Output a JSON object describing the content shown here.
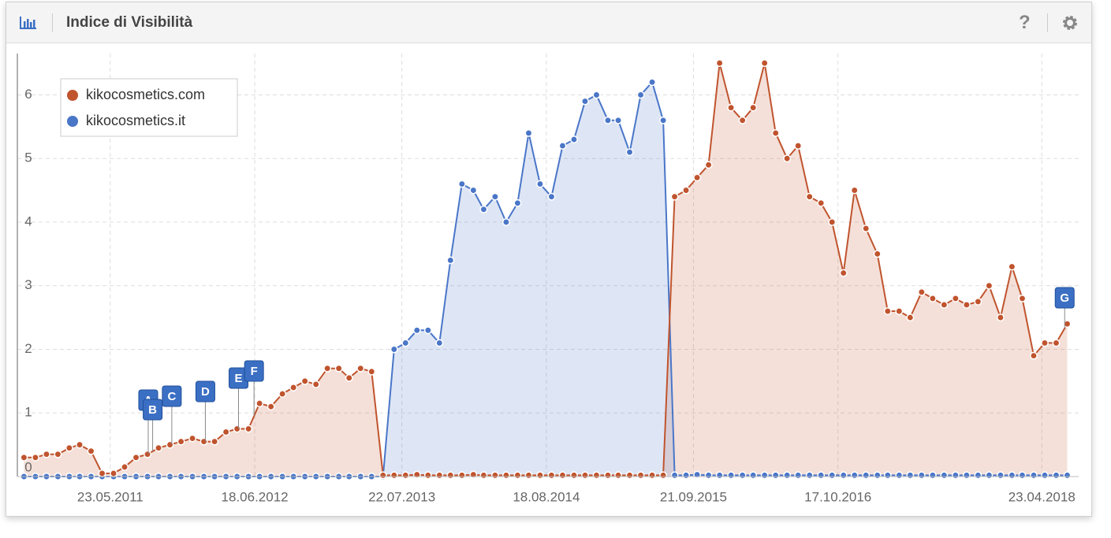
{
  "header": {
    "title": "Indice di Visibilità",
    "help": "?"
  },
  "chart_data": {
    "type": "area",
    "xlim": [
      "13.09.2010",
      "01.08.2018"
    ],
    "xticks": [
      "23.05.2011",
      "18.06.2012",
      "22.07.2013",
      "18.08.2014",
      "21.09.2015",
      "17.10.2016",
      "23.04.2018"
    ],
    "ylim": [
      0,
      6.65
    ],
    "yticks": [
      0,
      1,
      2,
      3,
      4,
      5,
      6
    ],
    "grid": true,
    "legend": "top-left",
    "x": [
      "01.10.2010",
      "01.11.2010",
      "01.12.2010",
      "01.01.2011",
      "01.02.2011",
      "01.03.2011",
      "01.04.2011",
      "01.05.2011",
      "01.06.2011",
      "01.07.2011",
      "01.08.2011",
      "01.09.2011",
      "01.10.2011",
      "01.11.2011",
      "01.12.2011",
      "01.01.2012",
      "01.02.2012",
      "01.03.2012",
      "01.04.2012",
      "01.05.2012",
      "01.06.2012",
      "01.07.2012",
      "01.08.2012",
      "01.09.2012",
      "01.10.2012",
      "01.11.2012",
      "01.12.2012",
      "01.01.2013",
      "01.02.2013",
      "01.03.2013",
      "01.04.2013",
      "01.05.2013",
      "01.06.2013",
      "01.07.2013",
      "01.08.2013",
      "01.09.2013",
      "01.10.2013",
      "01.11.2013",
      "01.12.2013",
      "01.01.2014",
      "01.02.2014",
      "01.03.2014",
      "01.04.2014",
      "01.05.2014",
      "01.06.2014",
      "01.07.2014",
      "01.08.2014",
      "01.09.2014",
      "01.10.2014",
      "01.11.2014",
      "01.12.2014",
      "01.01.2015",
      "01.02.2015",
      "01.03.2015",
      "01.04.2015",
      "01.05.2015",
      "01.06.2015",
      "01.07.2015",
      "01.08.2015",
      "01.09.2015",
      "01.10.2015",
      "01.11.2015",
      "01.12.2015",
      "01.01.2016",
      "01.02.2016",
      "01.03.2016",
      "01.04.2016",
      "01.05.2016",
      "01.06.2016",
      "01.07.2016",
      "01.08.2016",
      "01.09.2016",
      "01.10.2016",
      "01.11.2016",
      "01.12.2016",
      "01.01.2017",
      "01.02.2017",
      "01.03.2017",
      "01.04.2017",
      "01.05.2017",
      "01.06.2017",
      "01.07.2017",
      "01.08.2017",
      "01.09.2017",
      "01.10.2017",
      "01.11.2017",
      "01.12.2017",
      "01.01.2018",
      "01.02.2018",
      "01.03.2018",
      "01.04.2018",
      "01.05.2018",
      "01.06.2018",
      "01.07.2018"
    ],
    "series": [
      {
        "name": "kikocosmetics.com",
        "color": "#c0542e",
        "values": [
          0.3,
          0.3,
          0.35,
          0.35,
          0.45,
          0.5,
          0.4,
          0.05,
          0.05,
          0.15,
          0.3,
          0.35,
          0.45,
          0.5,
          0.55,
          0.6,
          0.55,
          0.55,
          0.7,
          0.75,
          0.75,
          1.15,
          1.1,
          1.3,
          1.4,
          1.5,
          1.45,
          1.7,
          1.7,
          1.55,
          1.7,
          1.65,
          0.02,
          0.02,
          0.02,
          0.03,
          0.02,
          0.02,
          0.02,
          0.02,
          0.03,
          0.02,
          0.02,
          0.02,
          0.02,
          0.02,
          0.02,
          0.02,
          0.02,
          0.02,
          0.02,
          0.02,
          0.02,
          0.02,
          0.02,
          0.02,
          0.02,
          0.02,
          4.4,
          4.5,
          4.7,
          4.9,
          6.5,
          5.8,
          5.6,
          5.8,
          6.5,
          5.4,
          5.0,
          5.2,
          4.4,
          4.3,
          4.0,
          3.2,
          4.5,
          3.9,
          3.5,
          2.6,
          2.6,
          2.5,
          2.9,
          2.8,
          2.7,
          2.8,
          2.7,
          2.75,
          3.0,
          2.5,
          3.3,
          2.8,
          1.9,
          2.1,
          2.1,
          2.4
        ]
      },
      {
        "name": "kikocosmetics.it",
        "color": "#4a76c8",
        "values": [
          0,
          0,
          0,
          0,
          0,
          0,
          0,
          0,
          0,
          0,
          0,
          0,
          0,
          0,
          0,
          0,
          0,
          0,
          0,
          0,
          0,
          0,
          0,
          0,
          0,
          0,
          0,
          0,
          0,
          0,
          0,
          0,
          0,
          2.0,
          2.1,
          2.3,
          2.3,
          2.1,
          3.4,
          4.6,
          4.5,
          4.2,
          4.4,
          4.0,
          4.3,
          5.4,
          4.6,
          4.4,
          5.2,
          5.3,
          5.9,
          6.0,
          5.6,
          5.6,
          5.1,
          6.0,
          6.2,
          5.6,
          0.02,
          0.02,
          0.03,
          0.02,
          0.02,
          0.02,
          0.02,
          0.02,
          0.02,
          0.02,
          0.02,
          0.02,
          0.02,
          0.02,
          0.02,
          0.02,
          0.02,
          0.02,
          0.02,
          0.02,
          0.02,
          0.02,
          0.02,
          0.02,
          0.02,
          0.02,
          0.02,
          0.02,
          0.02,
          0.02,
          0.02,
          0.02,
          0.02,
          0.02,
          0.02,
          0.02
        ]
      }
    ],
    "annotations": [
      {
        "label": "A",
        "x": "03.09.2011"
      },
      {
        "label": "B",
        "x": "15.09.2011"
      },
      {
        "label": "C",
        "x": "06.11.2011"
      },
      {
        "label": "D",
        "x": "05.02.2012"
      },
      {
        "label": "E",
        "x": "05.05.2012"
      },
      {
        "label": "F",
        "x": "16.06.2012"
      },
      {
        "label": "G",
        "x": "24.06.2018"
      }
    ]
  }
}
